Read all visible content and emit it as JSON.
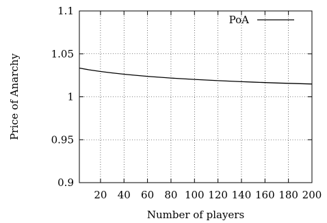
{
  "chart_data": {
    "type": "line",
    "xlabel": "Number of players",
    "ylabel": "Price of Anarchy",
    "xlim": [
      2,
      200
    ],
    "ylim": [
      0.9,
      1.1
    ],
    "x_ticks": [
      20,
      40,
      60,
      80,
      100,
      120,
      140,
      160,
      180,
      200
    ],
    "y_ticks": [
      0.9,
      0.95,
      1,
      1.05,
      1.1
    ],
    "x_tick_labels": [
      "20",
      "40",
      "60",
      "80",
      "100",
      "120",
      "140",
      "160",
      "180",
      "200"
    ],
    "y_tick_labels": [
      "0.9",
      "0.95",
      "1",
      "1.05",
      "1.1"
    ],
    "grid": true,
    "legend_position": "top-right",
    "series": [
      {
        "name": "PoA",
        "color": "#000000",
        "x": [
          2,
          10,
          20,
          30,
          40,
          50,
          60,
          70,
          80,
          90,
          100,
          110,
          120,
          130,
          140,
          150,
          160,
          170,
          180,
          190,
          200
        ],
        "y": [
          1.0335,
          1.0315,
          1.0295,
          1.0278,
          1.0263,
          1.025,
          1.0238,
          1.0228,
          1.0218,
          1.021,
          1.0202,
          1.0195,
          1.0188,
          1.0182,
          1.0176,
          1.0171,
          1.0166,
          1.0161,
          1.0157,
          1.0153,
          1.0149
        ]
      }
    ]
  }
}
